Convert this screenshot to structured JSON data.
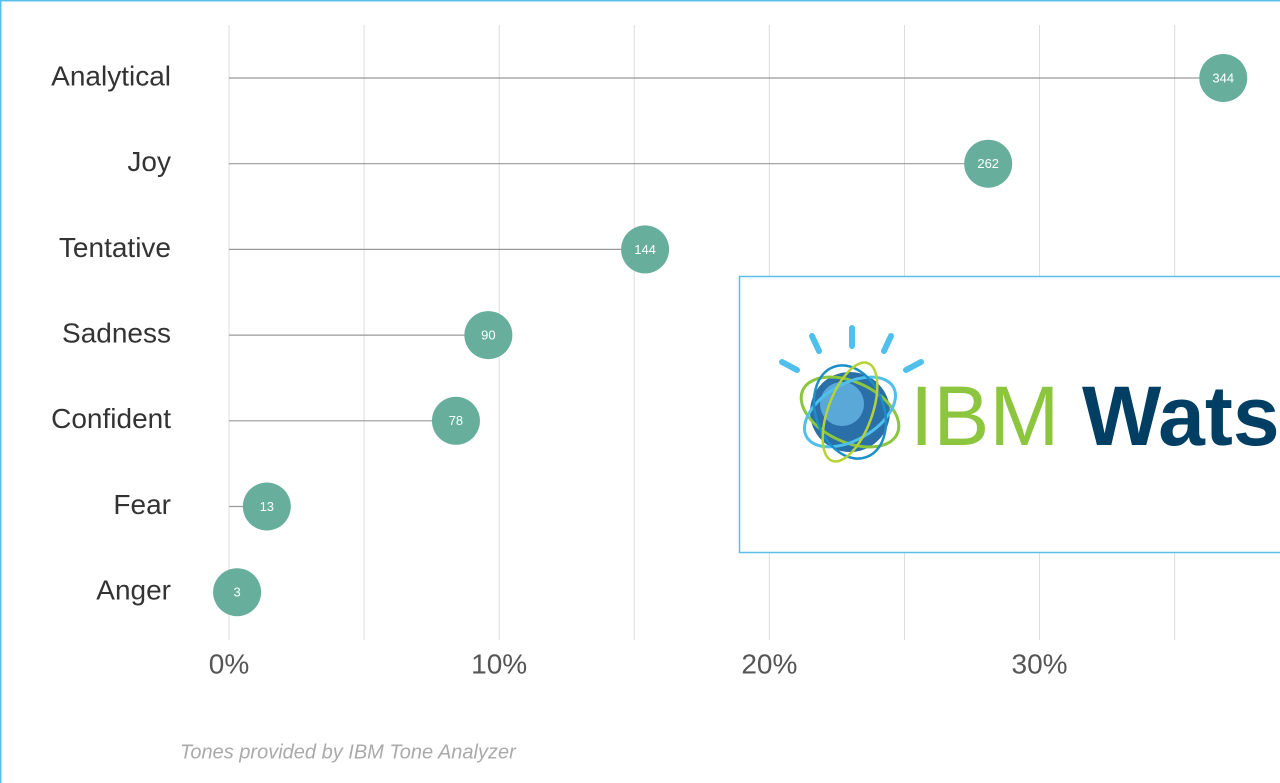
{
  "chart_data": {
    "type": "lollipop",
    "categories": [
      "Analytical",
      "Joy",
      "Tentative",
      "Sadness",
      "Confident",
      "Fear",
      "Anger"
    ],
    "values": [
      36.8,
      28.1,
      15.4,
      9.6,
      8.4,
      1.4,
      0.3
    ],
    "counts": [
      344,
      262,
      144,
      90,
      78,
      13,
      3
    ],
    "color": "#67ae9d",
    "xlim": [
      0,
      38.9
    ],
    "xticks": [
      {
        "value": 0,
        "label": "0%"
      },
      {
        "value": 10,
        "label": "10%"
      },
      {
        "value": 20,
        "label": "20%"
      },
      {
        "value": 30,
        "label": "30%"
      }
    ],
    "minor_xticks": [
      5,
      15,
      25,
      35
    ],
    "grid": true,
    "footnote": "Tones provided by IBM Tone Analyzer"
  },
  "logo": {
    "brand": "IBM",
    "product": "Watson"
  }
}
